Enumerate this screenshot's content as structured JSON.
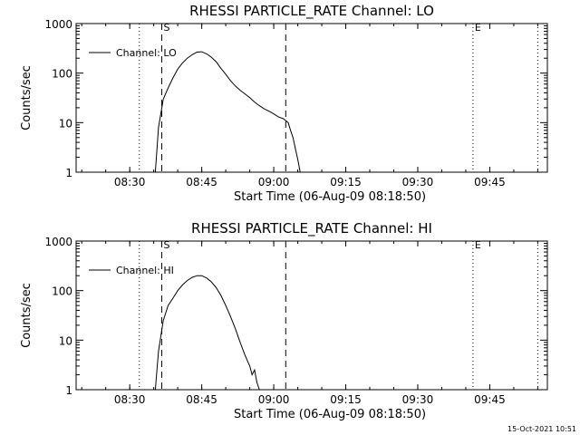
{
  "footer": {
    "timestamp": "15-Oct-2021 10:51"
  },
  "chart_data": [
    {
      "type": "line",
      "title": "RHESSI PARTICLE_RATE Channel: LO",
      "xlabel": "Start Time (06-Aug-09 08:18:50)",
      "ylabel": "Counts/sec",
      "y_scale": "log",
      "ylim": [
        1,
        1000
      ],
      "xlim": [
        "08:18:50",
        "09:57:00"
      ],
      "x_ticks": [
        "08:30",
        "08:45",
        "09:00",
        "09:15",
        "09:30",
        "09:45"
      ],
      "y_ticks": [
        "1",
        "10",
        "100",
        "1000"
      ],
      "legend": {
        "position": "top-left",
        "entries": [
          "Channel: LO"
        ]
      },
      "grid": false,
      "markers": [
        {
          "time": "08:32:00",
          "style": "dotted",
          "label": ""
        },
        {
          "time": "08:36:40",
          "style": "dashed",
          "label": "S"
        },
        {
          "time": "09:02:30",
          "style": "dashed",
          "label": ""
        },
        {
          "time": "09:41:30",
          "style": "dotted",
          "label": "E"
        },
        {
          "time": "09:55:00",
          "style": "dotted",
          "label": ""
        }
      ],
      "series": [
        {
          "name": "Channel: LO",
          "x": [
            "08:35:20",
            "08:36:00",
            "08:37:00",
            "08:38:00",
            "08:39:00",
            "08:40:00",
            "08:41:00",
            "08:42:00",
            "08:43:00",
            "08:44:00",
            "08:45:00",
            "08:46:00",
            "08:47:00",
            "08:48:00",
            "08:49:00",
            "08:50:00",
            "08:51:00",
            "08:52:00",
            "08:53:00",
            "08:54:00",
            "08:55:00",
            "08:56:00",
            "08:57:00",
            "08:58:00",
            "08:59:00",
            "09:00:00",
            "09:01:00",
            "09:02:00",
            "09:03:00",
            "09:03:30",
            "09:04:00",
            "09:04:30",
            "09:05:00",
            "09:05:30"
          ],
          "y": [
            1,
            8,
            30,
            50,
            80,
            120,
            160,
            200,
            235,
            265,
            270,
            245,
            210,
            170,
            125,
            95,
            70,
            55,
            45,
            38,
            32,
            26,
            22,
            19,
            17,
            15,
            13,
            12,
            10,
            7,
            5,
            3,
            1.8,
            1
          ]
        }
      ]
    },
    {
      "type": "line",
      "title": "RHESSI PARTICLE_RATE Channel: HI",
      "xlabel": "Start Time (06-Aug-09 08:18:50)",
      "ylabel": "Counts/sec",
      "y_scale": "log",
      "ylim": [
        1,
        1000
      ],
      "xlim": [
        "08:18:50",
        "09:57:00"
      ],
      "x_ticks": [
        "08:30",
        "08:45",
        "09:00",
        "09:15",
        "09:30",
        "09:45"
      ],
      "y_ticks": [
        "1",
        "10",
        "100",
        "1000"
      ],
      "legend": {
        "position": "top-left",
        "entries": [
          "Channel: HI"
        ]
      },
      "grid": false,
      "markers": [
        {
          "time": "08:32:00",
          "style": "dotted",
          "label": ""
        },
        {
          "time": "08:36:40",
          "style": "dashed",
          "label": "S"
        },
        {
          "time": "09:02:30",
          "style": "dashed",
          "label": ""
        },
        {
          "time": "09:41:30",
          "style": "dotted",
          "label": "E"
        },
        {
          "time": "09:55:00",
          "style": "dotted",
          "label": ""
        }
      ],
      "series": [
        {
          "name": "Channel: HI",
          "x": [
            "08:35:20",
            "08:36:00",
            "08:37:00",
            "08:38:00",
            "08:39:00",
            "08:40:00",
            "08:41:00",
            "08:42:00",
            "08:43:00",
            "08:44:00",
            "08:45:00",
            "08:46:00",
            "08:47:00",
            "08:48:00",
            "08:49:00",
            "08:50:00",
            "08:51:00",
            "08:52:00",
            "08:53:00",
            "08:54:00",
            "08:55:00",
            "08:55:30",
            "08:56:00",
            "08:56:30",
            "08:57:00"
          ],
          "y": [
            1,
            6,
            25,
            50,
            70,
            100,
            130,
            160,
            185,
            200,
            200,
            180,
            150,
            115,
            80,
            50,
            30,
            17,
            9,
            5,
            3,
            2,
            2.5,
            1.4,
            1
          ]
        }
      ]
    }
  ]
}
